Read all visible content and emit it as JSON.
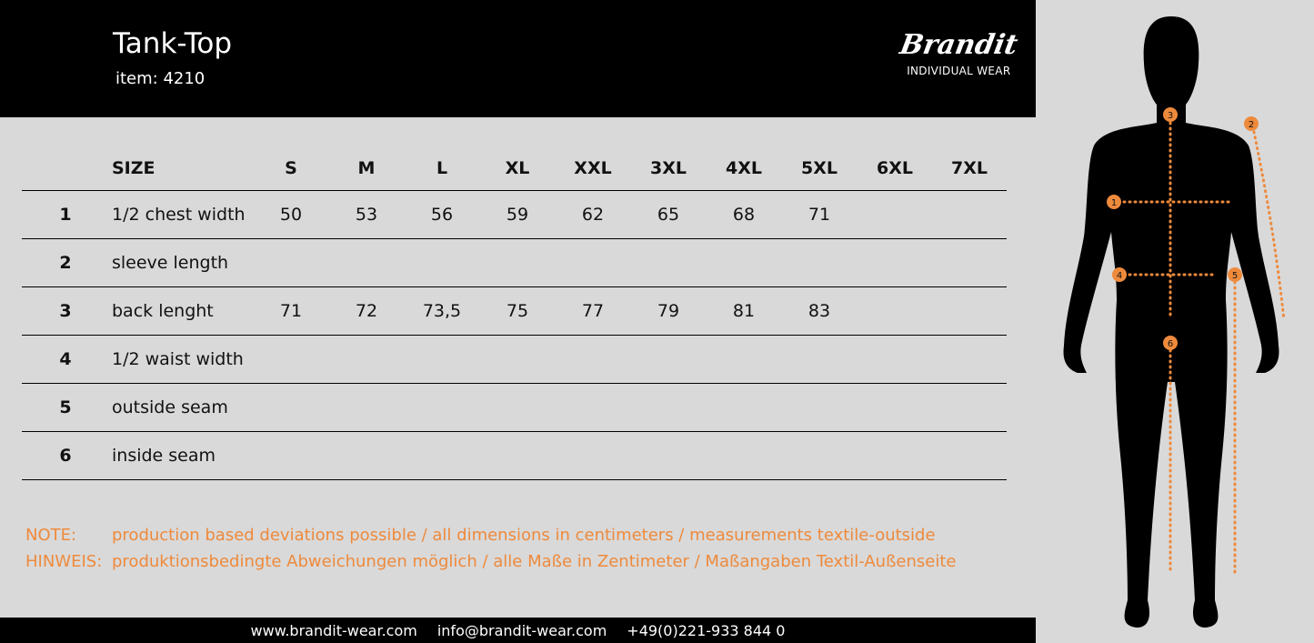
{
  "header": {
    "title": "Tank-Top",
    "item": "item: 4210",
    "brand": "Brandit",
    "brand_sub": "INDIVIDUAL WEAR"
  },
  "table": {
    "size_label": "SIZE",
    "sizes": [
      "S",
      "M",
      "L",
      "XL",
      "XXL",
      "3XL",
      "4XL",
      "5XL",
      "6XL",
      "7XL"
    ],
    "rows": [
      {
        "num": "1",
        "label": "1/2 chest width",
        "values": [
          "50",
          "53",
          "56",
          "59",
          "62",
          "65",
          "68",
          "71",
          "",
          ""
        ]
      },
      {
        "num": "2",
        "label": "sleeve length",
        "values": [
          "",
          "",
          "",
          "",
          "",
          "",
          "",
          "",
          "",
          ""
        ]
      },
      {
        "num": "3",
        "label": "back lenght",
        "values": [
          "71",
          "72",
          "73,5",
          "75",
          "77",
          "79",
          "81",
          "83",
          "",
          ""
        ]
      },
      {
        "num": "4",
        "label": "1/2 waist width",
        "values": [
          "",
          "",
          "",
          "",
          "",
          "",
          "",
          "",
          "",
          ""
        ]
      },
      {
        "num": "5",
        "label": "outside seam",
        "values": [
          "",
          "",
          "",
          "",
          "",
          "",
          "",
          "",
          "",
          ""
        ]
      },
      {
        "num": "6",
        "label": "inside seam",
        "values": [
          "",
          "",
          "",
          "",
          "",
          "",
          "",
          "",
          "",
          ""
        ]
      }
    ]
  },
  "notes": [
    {
      "key": "NOTE:",
      "text": "production based deviations possible / all dimensions in centimeters / measurements textile-outside"
    },
    {
      "key": "HINWEIS:",
      "text": "produktionsbedingte Abweichungen möglich / alle Maße in Zentimeter / Maßangaben Textil-Außenseite"
    }
  ],
  "footer": {
    "web": "www.brandit-wear.com",
    "email": "info@brandit-wear.com",
    "phone": "+49(0)221-933 844 0"
  },
  "figure": {
    "markers": [
      "1",
      "2",
      "3",
      "4",
      "5",
      "6"
    ]
  },
  "colors": {
    "accent": "#ee8a3c",
    "background": "#d9d9d9",
    "header": "#000000"
  }
}
